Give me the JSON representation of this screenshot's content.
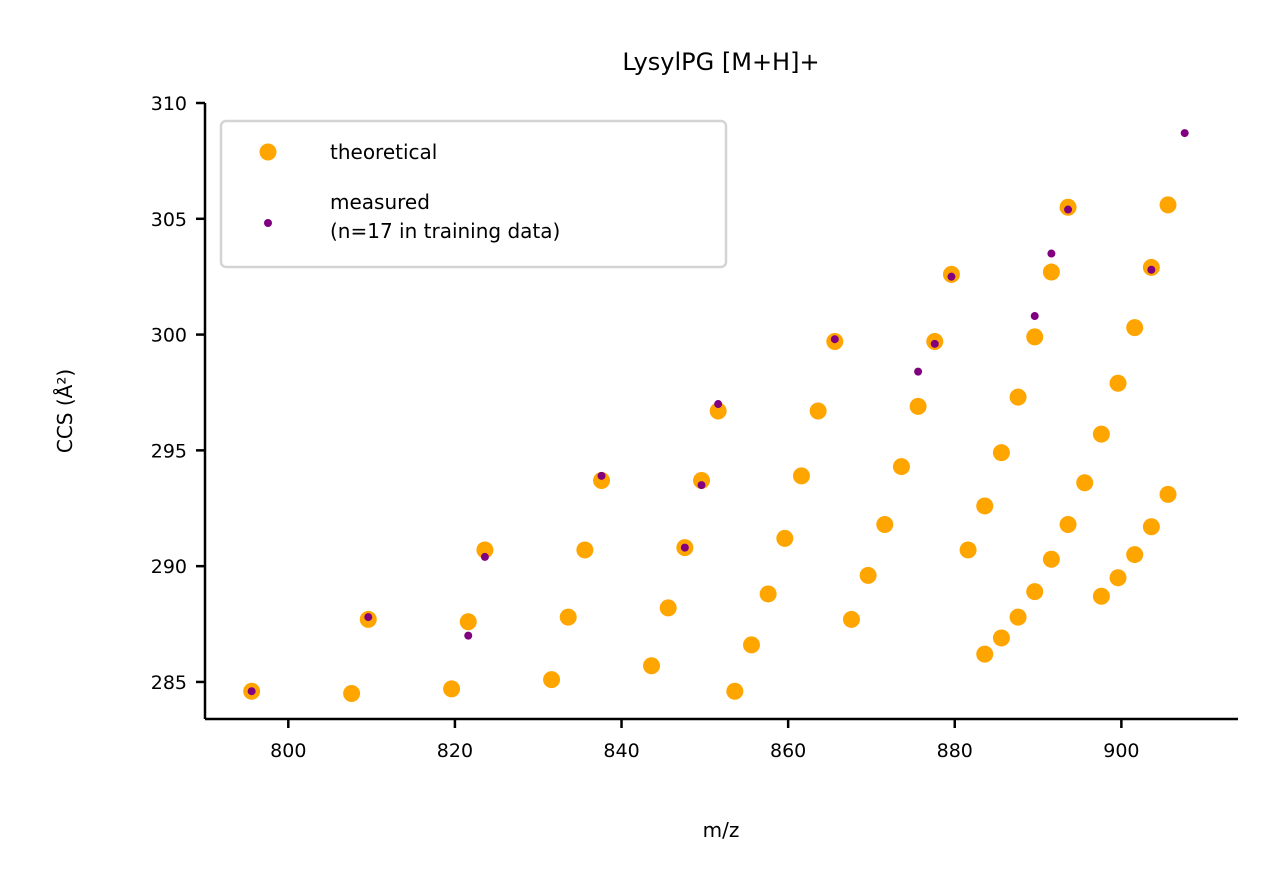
{
  "chart_data": {
    "type": "scatter",
    "title": "LysylPG [M+H]+",
    "xlabel": "m/z",
    "ylabel": "CCS (Å²)",
    "xlim": [
      790,
      914
    ],
    "ylim": [
      283.4,
      310
    ],
    "x_ticks": [
      800,
      820,
      840,
      860,
      880,
      900
    ],
    "y_ticks": [
      285,
      290,
      295,
      300,
      305,
      310
    ],
    "legend_position": "upper-left",
    "colors": {
      "theoretical": "#ffa500",
      "measured": "#800080"
    },
    "series": [
      {
        "name": "theoretical",
        "points": [
          [
            795.6,
            284.6
          ],
          [
            807.6,
            284.5
          ],
          [
            809.6,
            287.7
          ],
          [
            819.6,
            284.7
          ],
          [
            821.6,
            287.6
          ],
          [
            823.6,
            290.7
          ],
          [
            831.6,
            285.1
          ],
          [
            833.6,
            287.8
          ],
          [
            835.6,
            290.7
          ],
          [
            837.6,
            293.7
          ],
          [
            843.6,
            285.7
          ],
          [
            845.6,
            288.2
          ],
          [
            847.6,
            290.8
          ],
          [
            849.6,
            293.7
          ],
          [
            851.6,
            296.7
          ],
          [
            853.6,
            284.6
          ],
          [
            855.6,
            286.6
          ],
          [
            857.6,
            288.8
          ],
          [
            859.6,
            291.2
          ],
          [
            861.6,
            293.9
          ],
          [
            863.6,
            296.7
          ],
          [
            865.6,
            299.7
          ],
          [
            867.6,
            287.7
          ],
          [
            869.6,
            289.6
          ],
          [
            871.6,
            291.8
          ],
          [
            873.6,
            294.3
          ],
          [
            875.6,
            296.9
          ],
          [
            877.6,
            299.7
          ],
          [
            879.6,
            302.6
          ],
          [
            881.6,
            290.7
          ],
          [
            883.6,
            286.2
          ],
          [
            883.6,
            292.6
          ],
          [
            885.6,
            286.9
          ],
          [
            885.6,
            294.9
          ],
          [
            887.6,
            287.8
          ],
          [
            887.6,
            297.3
          ],
          [
            889.6,
            288.9
          ],
          [
            889.6,
            299.9
          ],
          [
            891.6,
            290.3
          ],
          [
            891.6,
            302.7
          ],
          [
            893.6,
            291.8
          ],
          [
            893.6,
            305.5
          ],
          [
            895.6,
            293.6
          ],
          [
            897.6,
            288.7
          ],
          [
            897.6,
            295.7
          ],
          [
            899.6,
            289.5
          ],
          [
            899.6,
            297.9
          ],
          [
            901.6,
            290.5
          ],
          [
            901.6,
            300.3
          ],
          [
            903.6,
            291.7
          ],
          [
            903.6,
            302.9
          ],
          [
            905.6,
            293.1
          ],
          [
            905.6,
            305.6
          ]
        ]
      },
      {
        "name": "measured\n(n=17 in training data)",
        "points": [
          [
            795.6,
            284.6
          ],
          [
            809.6,
            287.8
          ],
          [
            821.6,
            287.0
          ],
          [
            823.6,
            290.4
          ],
          [
            837.6,
            293.9
          ],
          [
            847.6,
            290.8
          ],
          [
            849.6,
            293.5
          ],
          [
            851.6,
            297.0
          ],
          [
            865.6,
            299.8
          ],
          [
            875.6,
            298.4
          ],
          [
            877.6,
            299.6
          ],
          [
            879.6,
            302.5
          ],
          [
            889.6,
            300.8
          ],
          [
            891.6,
            303.5
          ],
          [
            893.6,
            305.4
          ],
          [
            903.6,
            302.8
          ],
          [
            907.6,
            308.7
          ]
        ]
      }
    ]
  }
}
